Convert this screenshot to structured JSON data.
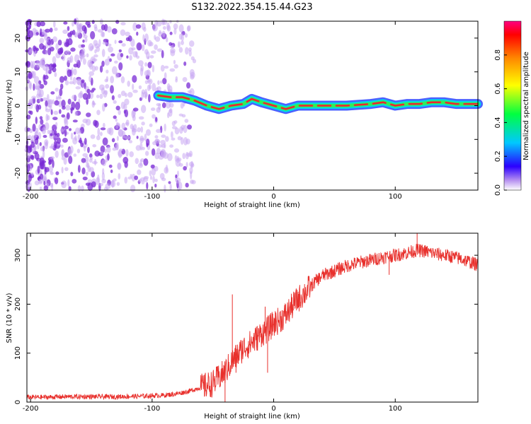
{
  "title": "S132.2022.354.15.44.G23",
  "colors": {
    "snr_line": "#e8302c",
    "track_core": "#ee2233",
    "track_mid": "#33ee55",
    "track_outer": "#2a44ff",
    "noise": "#7a2bd6",
    "noise_light": "#c9a8f2"
  },
  "chart_data": [
    {
      "type": "heatmap",
      "name": "spectrogram",
      "xlabel": "Height of straight line (km)",
      "ylabel": "Frequency (Hz)",
      "xlim": [
        -203,
        168
      ],
      "ylim": [
        -25,
        25
      ],
      "xticks": [
        -200,
        -100,
        0,
        100
      ],
      "yticks": [
        -20,
        -10,
        0,
        10,
        20
      ],
      "colorbar": {
        "label": "Normalized spectral amplitude",
        "range": [
          0,
          1
        ],
        "ticks": [
          0.0,
          0.2,
          0.4,
          0.6,
          0.8
        ],
        "colormap": "rainbow"
      },
      "noise_region_x": [
        -203,
        -65
      ],
      "signal_track": {
        "x": [
          -95,
          -85,
          -75,
          -65,
          -55,
          -45,
          -35,
          -25,
          -18,
          -10,
          0,
          10,
          20,
          30,
          40,
          60,
          80,
          90,
          100,
          110,
          120,
          130,
          140,
          150,
          160,
          168
        ],
        "y": [
          3,
          2.5,
          2.5,
          1.5,
          0,
          -1,
          0,
          0.5,
          2,
          1,
          0,
          -1,
          0,
          0,
          0,
          0,
          0.5,
          1,
          0,
          0.5,
          0.5,
          1,
          1,
          0.5,
          0.5,
          0.5
        ]
      }
    },
    {
      "type": "line",
      "name": "snr",
      "xlabel": "Height of straight line (km)",
      "ylabel": "SNR (10 * v/v)",
      "xlim": [
        -203,
        168
      ],
      "ylim": [
        0,
        345
      ],
      "xticks": [
        -200,
        -100,
        0,
        100
      ],
      "yticks": [
        0,
        100,
        200,
        300
      ],
      "series": [
        {
          "x": [
            -203,
            -190,
            -170,
            -150,
            -130,
            -110,
            -100,
            -90,
            -80,
            -70,
            -60,
            -50,
            -45,
            -40,
            -35,
            -30,
            -25,
            -20,
            -15,
            -10,
            -5,
            0,
            5,
            10,
            15,
            20,
            25,
            30,
            35,
            40,
            50,
            60,
            70,
            80,
            90,
            100,
            110,
            118,
            125,
            135,
            145,
            155,
            168
          ],
          "y": [
            10,
            10,
            11,
            11,
            11,
            12,
            13,
            14,
            17,
            22,
            30,
            38,
            50,
            62,
            80,
            95,
            110,
            118,
            128,
            140,
            148,
            160,
            168,
            178,
            195,
            210,
            222,
            235,
            248,
            258,
            268,
            278,
            285,
            290,
            296,
            300,
            305,
            310,
            308,
            302,
            298,
            292,
            280
          ]
        }
      ],
      "spikes": [
        {
          "x": -40,
          "y": 0
        },
        {
          "x": -34,
          "y": 220
        },
        {
          "x": -31,
          "y": 60
        },
        {
          "x": -7,
          "y": 195
        },
        {
          "x": -5,
          "y": 60
        },
        {
          "x": 95,
          "y": 260
        },
        {
          "x": 118,
          "y": 345
        }
      ]
    }
  ]
}
